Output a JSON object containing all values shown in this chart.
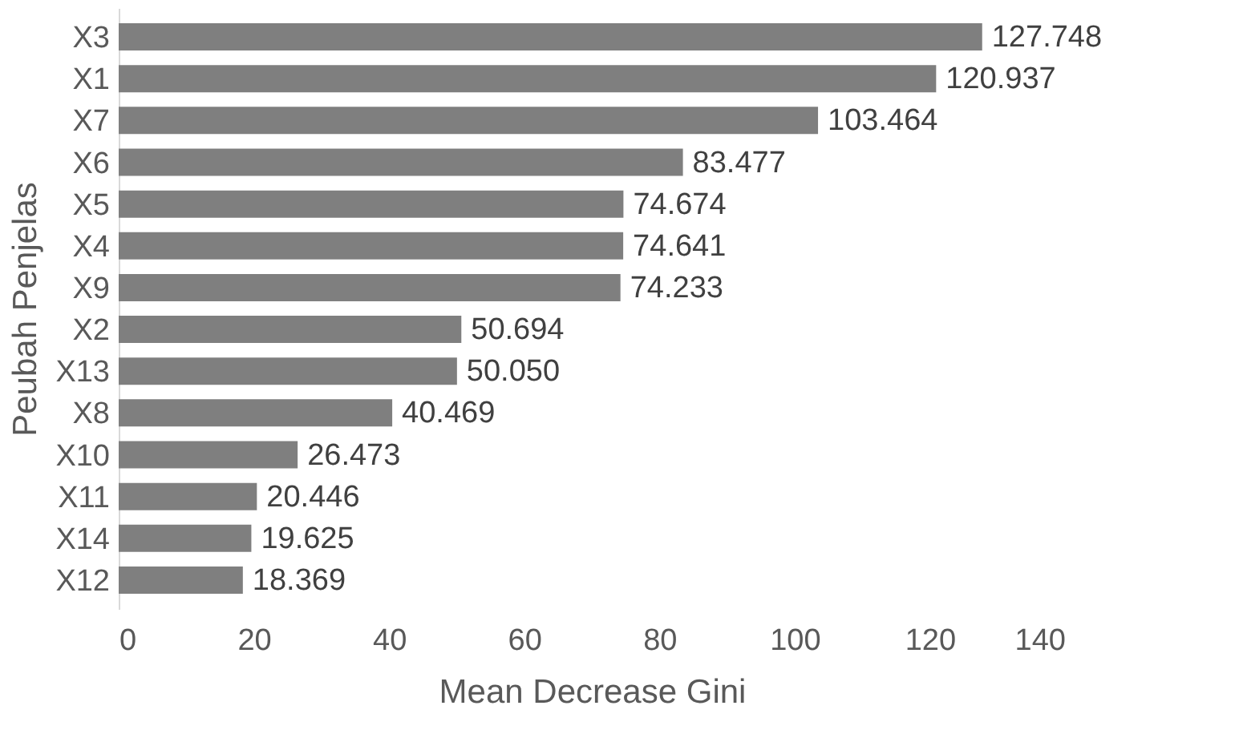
{
  "chart_data": {
    "type": "bar",
    "orientation": "horizontal",
    "xlabel": "Mean Decrease Gini",
    "ylabel": "Peubah Penjelas",
    "categories": [
      "X3",
      "X1",
      "X7",
      "X6",
      "X5",
      "X4",
      "X9",
      "X2",
      "X13",
      "X8",
      "X10",
      "X11",
      "X14",
      "X12"
    ],
    "values": [
      127.748,
      120.937,
      103.464,
      83.477,
      74.674,
      74.641,
      74.233,
      50.694,
      50.05,
      40.469,
      26.473,
      20.446,
      19.625,
      18.369
    ],
    "value_labels": [
      "127.748",
      "120.937",
      "103.464",
      "83.477",
      "74.674",
      "74.641",
      "74.233",
      "50.694",
      "50.050",
      "40.469",
      "26.473",
      "20.446",
      "19.625",
      "18.369"
    ],
    "color": "#7f7f7f",
    "xlim": [
      0,
      140
    ],
    "xticks": [
      0,
      20,
      40,
      60,
      80,
      100,
      120,
      140
    ],
    "grid": false
  }
}
